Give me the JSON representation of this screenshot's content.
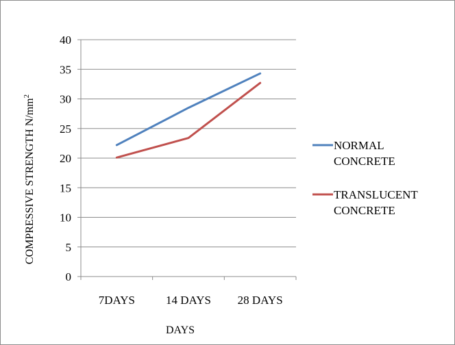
{
  "chart_data": {
    "type": "line",
    "categories": [
      "7DAYS",
      "14 DAYS",
      "28 DAYS"
    ],
    "series": [
      {
        "name": "NORMAL CONCRETE",
        "values": [
          22.2,
          28.5,
          34.3
        ],
        "color": "#4f81bd"
      },
      {
        "name": "TRANSLUCENT CONCRETE",
        "values": [
          20.1,
          23.4,
          32.7
        ],
        "color": "#c0504d"
      }
    ],
    "xlabel": "DAYS",
    "ylabel": "COMPRESSIVE STRENGTH N/mm",
    "ylabel_superscript": "2",
    "ylim": [
      0,
      40
    ],
    "yticks": [
      "0",
      "5",
      "10",
      "15",
      "20",
      "25",
      "30",
      "35",
      "40"
    ],
    "grid": true,
    "legend_position": "right"
  }
}
